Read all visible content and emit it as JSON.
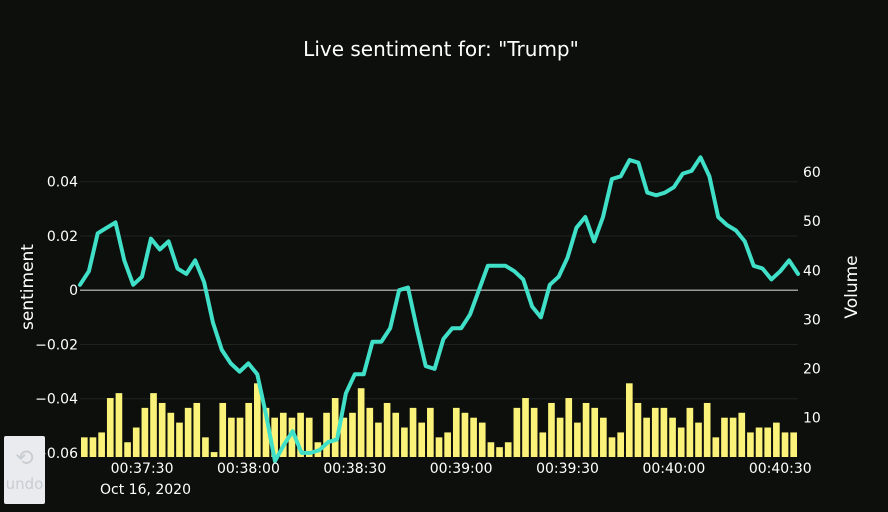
{
  "chart_data": {
    "type": "line",
    "title": "Live sentiment for: \"Trump\"",
    "ylabel": "sentiment",
    "y2label": "Volume",
    "date_label": "Oct 16, 2020",
    "x_tick_labels": [
      "00:37:30",
      "00:38:00",
      "00:38:30",
      "00:39:00",
      "00:39:30",
      "00:40:00",
      "00:40:30"
    ],
    "y_tick_labels": [
      "0.04",
      "0.02",
      "0",
      "−0.02",
      "−0.04",
      "−0.06"
    ],
    "y2_tick_labels": [
      "60",
      "50",
      "40",
      "30",
      "20",
      "10"
    ],
    "ylim": [
      -0.0615,
      0.0635
    ],
    "y2lim": [
      2,
      71
    ],
    "grid": true,
    "line_color": "#40e0c8",
    "bar_color": "#fbf279",
    "series": [
      {
        "type": "line",
        "axis": "left",
        "values": [
          0.002,
          0.007,
          0.021,
          0.023,
          0.025,
          0.011,
          0.002,
          0.005,
          0.019,
          0.015,
          0.018,
          0.008,
          0.006,
          0.011,
          0.003,
          -0.012,
          -0.022,
          -0.027,
          -0.03,
          -0.027,
          -0.031,
          -0.046,
          -0.063,
          -0.057,
          -0.052,
          -0.06,
          -0.06,
          -0.059,
          -0.056,
          -0.055,
          -0.038,
          -0.031,
          -0.031,
          -0.019,
          -0.019,
          -0.014,
          0.0,
          0.001,
          -0.014,
          -0.028,
          -0.029,
          -0.018,
          -0.014,
          -0.014,
          -0.009,
          0.0,
          0.009,
          0.009,
          0.009,
          0.007,
          0.004,
          -0.006,
          -0.01,
          0.002,
          0.005,
          0.012,
          0.023,
          0.027,
          0.018,
          0.027,
          0.041,
          0.042,
          0.048,
          0.047,
          0.036,
          0.035,
          0.036,
          0.038,
          0.043,
          0.044,
          0.049,
          0.042,
          0.027,
          0.024,
          0.022,
          0.018,
          0.009,
          0.008,
          0.004,
          0.007,
          0.011,
          0.006
        ]
      },
      {
        "type": "bar",
        "axis": "right",
        "values": [
          6,
          6,
          7,
          14,
          15,
          5,
          8,
          12,
          15,
          13,
          11,
          9,
          12,
          13,
          6,
          3,
          13,
          10,
          10,
          13,
          17,
          12,
          10,
          11,
          10,
          11,
          10,
          5,
          11,
          14,
          10,
          11,
          16,
          12,
          9,
          13,
          11,
          8,
          12,
          9,
          12,
          6,
          7,
          12,
          11,
          10,
          9,
          5,
          4,
          5,
          12,
          14,
          12,
          7,
          13,
          10,
          14,
          9,
          13,
          12,
          10,
          6,
          7,
          17,
          13,
          10,
          12,
          12,
          10,
          8,
          12,
          9,
          13,
          6,
          10,
          10,
          11,
          7,
          8,
          8,
          9,
          7,
          7
        ]
      }
    ]
  },
  "undo": {
    "icon": "undo-icon",
    "icon_glyph": "⟲",
    "label": "undo"
  }
}
